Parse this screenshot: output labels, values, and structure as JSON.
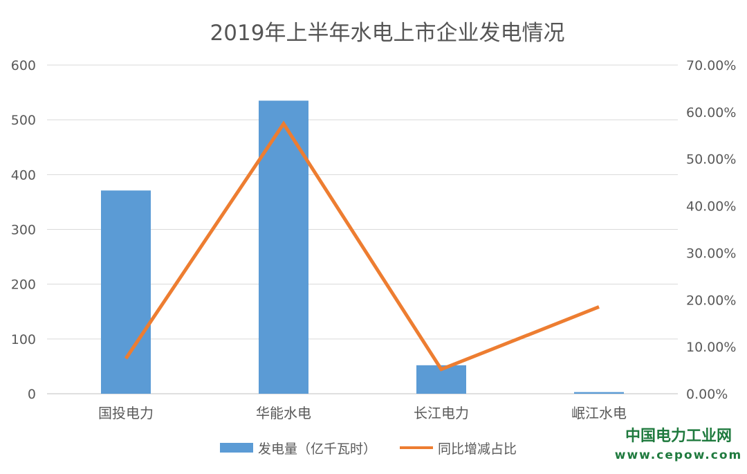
{
  "chart_data": {
    "type": "bar",
    "title": "2019年上半年水电上市企业发电情况",
    "categories": [
      "国投电力",
      "华能水电",
      "长江电力",
      "岷江水电"
    ],
    "series": [
      {
        "name": "发电量（亿千瓦时）",
        "type": "bar",
        "axis": "left",
        "color": "#5b9bd5",
        "values": [
          371,
          535,
          52,
          3
        ]
      },
      {
        "name": "同比增减占比",
        "type": "line",
        "axis": "right",
        "color": "#ed7d31",
        "values": [
          7.5,
          57.5,
          5.2,
          18.5
        ]
      }
    ],
    "y_left": {
      "min": 0,
      "max": 600,
      "step": 100,
      "ticks": [
        "0",
        "100",
        "200",
        "300",
        "400",
        "500",
        "600"
      ]
    },
    "y_right": {
      "min": 0,
      "max": 70,
      "step": 10,
      "ticks": [
        "0.00%",
        "10.00%",
        "20.00%",
        "30.00%",
        "40.00%",
        "50.00%",
        "60.00%",
        "70.00%"
      ]
    },
    "grid": true,
    "legend": "bottom"
  },
  "watermark": {
    "name": "中国电力工业网",
    "url": "www.cepow.com"
  }
}
